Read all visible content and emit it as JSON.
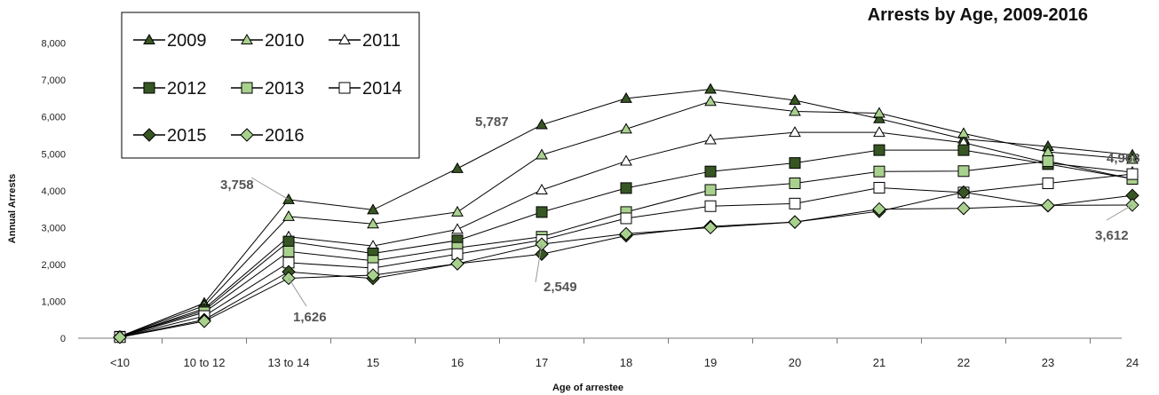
{
  "chart_data": {
    "type": "line",
    "title": "Arrests by Age, 2009-2016",
    "xlabel": "Age of arrestee",
    "ylabel": "Annual Arrests",
    "categories": [
      "<10",
      "10 to 12",
      "13 to 14",
      "15",
      "16",
      "17",
      "18",
      "19",
      "20",
      "21",
      "22",
      "23",
      "24"
    ],
    "ylim": [
      0,
      8000
    ],
    "yticks": [
      0,
      1000,
      2000,
      3000,
      4000,
      5000,
      6000,
      7000,
      8000
    ],
    "ytick_labels": [
      "0",
      "1,000",
      "2,000",
      "3,000",
      "4,000",
      "5,000",
      "6,000",
      "7,000",
      "8,000"
    ],
    "grid": false,
    "legend_position": "top-left",
    "series": [
      {
        "name": "2009",
        "marker": "triangle",
        "color": "#375623",
        "values": [
          50,
          950,
          3758,
          3480,
          4600,
          5787,
          6500,
          6750,
          6450,
          5950,
          5400,
          5200,
          4968
        ]
      },
      {
        "name": "2010",
        "marker": "triangle",
        "color": "#a9d18e",
        "values": [
          45,
          880,
          3300,
          3100,
          3420,
          4970,
          5670,
          6420,
          6150,
          6100,
          5550,
          5050,
          4850
        ]
      },
      {
        "name": "2011",
        "marker": "triangle",
        "color": "#ffffff",
        "values": [
          40,
          800,
          2750,
          2500,
          2950,
          4020,
          4800,
          5380,
          5580,
          5580,
          5300,
          4750,
          4500
        ]
      },
      {
        "name": "2012",
        "marker": "square",
        "color": "#375623",
        "values": [
          40,
          750,
          2620,
          2300,
          2650,
          3420,
          4070,
          4520,
          4750,
          5100,
          5100,
          4720,
          4320
        ]
      },
      {
        "name": "2013",
        "marker": "square",
        "color": "#a9d18e",
        "values": [
          35,
          700,
          2350,
          2100,
          2450,
          2750,
          3420,
          4020,
          4200,
          4520,
          4530,
          4800,
          4320
        ]
      },
      {
        "name": "2014",
        "marker": "square",
        "color": "#ffffff",
        "values": [
          30,
          600,
          2050,
          1900,
          2280,
          2660,
          3250,
          3580,
          3650,
          4080,
          3950,
          4200,
          4450
        ]
      },
      {
        "name": "2015",
        "marker": "diamond",
        "color": "#375623",
        "values": [
          30,
          500,
          1800,
          1620,
          2020,
          2280,
          2780,
          3030,
          3150,
          3440,
          3960,
          3590,
          3870
        ]
      },
      {
        "name": "2016",
        "marker": "diamond",
        "color": "#a9d18e",
        "values": [
          25,
          460,
          1626,
          1710,
          2020,
          2549,
          2830,
          3000,
          3150,
          3500,
          3520,
          3600,
          3612
        ]
      }
    ],
    "annotations": [
      "3,758",
      "5,787",
      "4,968",
      "1,626",
      "2,549",
      "3,612"
    ]
  }
}
